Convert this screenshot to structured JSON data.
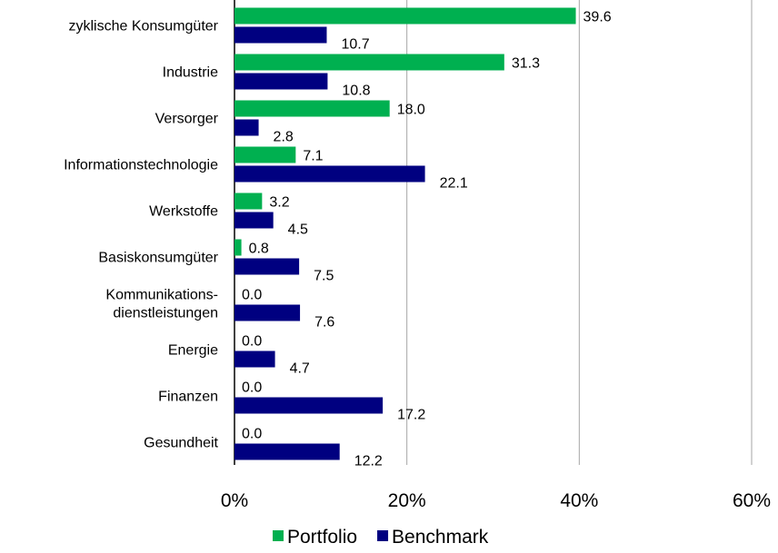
{
  "chart_data": {
    "type": "bar",
    "orientation": "horizontal",
    "categories": [
      "zyklische Konsumgüter",
      "Industrie",
      "Versorger",
      "Informationstechnologie",
      "Werkstoffe",
      "Basiskonsumgüter",
      "Kommunikations-\ndienstleistungen",
      "Energie",
      "Finanzen",
      "Gesundheit"
    ],
    "series": [
      {
        "name": "Portfolio",
        "color": "#00b050",
        "values": [
          39.6,
          31.3,
          18.0,
          7.1,
          3.2,
          0.8,
          0.0,
          0.0,
          0.0,
          0.0
        ],
        "value_labels": [
          "39.6",
          "31.3",
          "18.0",
          "7.1",
          "3.2",
          "0.8",
          "0.0",
          "0.0",
          "0.0",
          "0.0"
        ]
      },
      {
        "name": "Benchmark",
        "color": "#000080",
        "values": [
          10.7,
          10.8,
          2.8,
          22.1,
          4.5,
          7.5,
          7.6,
          4.7,
          17.2,
          12.2
        ],
        "value_labels": [
          "10.7",
          "10.8",
          "2.8",
          "22.1",
          "4.5",
          "7.5",
          "7.6",
          "4.7",
          "17.2",
          "12.2"
        ]
      }
    ],
    "xlim": [
      0,
      60
    ],
    "xticks": [
      {
        "value": 0,
        "label": "0%"
      },
      {
        "value": 20,
        "label": "20%"
      },
      {
        "value": 40,
        "label": "40%"
      },
      {
        "value": 60,
        "label": "60%"
      }
    ],
    "grid": true,
    "legend": "bottom"
  }
}
